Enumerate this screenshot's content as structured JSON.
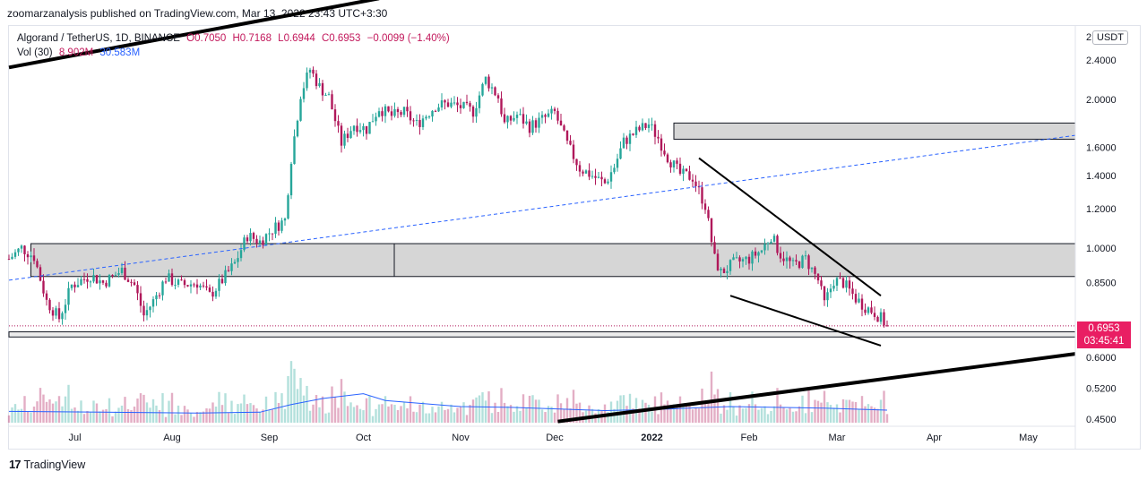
{
  "publisher_line": "zoomarzanalysis published on TradingView.com, Mar 13, 2022 23:43 UTC+3:30",
  "footer_brand": "TradingView",
  "legend": {
    "symbol": "Algorand / TetherUS, 1D, BINANCE",
    "open": "O0.7050",
    "high": "H0.7168",
    "low": "L0.6944",
    "close": "C0.6953",
    "change": "−0.0099 (−1.40%)",
    "volume_label": "Vol (30)",
    "volume_value": "8.902M",
    "volume_ma": "30.583M"
  },
  "currency_badge": "USDT",
  "current_price": {
    "value": "0.6953",
    "countdown": "03:45:41"
  },
  "colors": {
    "up": "#26a69a",
    "down": "#b0185a",
    "line": "#2962ff",
    "zone": "#d6d6d6"
  },
  "chart_data": {
    "type": "candlestick",
    "y_scale": "log",
    "y_ticks": [
      {
        "value": 2.4,
        "label": "2.4000"
      },
      {
        "value": 2.0,
        "label": "2.0000"
      },
      {
        "value": 1.6,
        "label": "1.6000"
      },
      {
        "value": 1.4,
        "label": "1.4000"
      },
      {
        "value": 1.2,
        "label": "1.2000"
      },
      {
        "value": 1.0,
        "label": "1.0000"
      },
      {
        "value": 0.85,
        "label": "0.8500"
      },
      {
        "value": 0.6,
        "label": "0.6000"
      },
      {
        "value": 0.52,
        "label": "0.5200"
      },
      {
        "value": 0.45,
        "label": "0.4500"
      }
    ],
    "y_top_partial": "2",
    "x_ticks": [
      {
        "label": "Jul",
        "day": 21
      },
      {
        "label": "Aug",
        "day": 52
      },
      {
        "label": "Sep",
        "day": 83
      },
      {
        "label": "Oct",
        "day": 113
      },
      {
        "label": "Nov",
        "day": 144
      },
      {
        "label": "Dec",
        "day": 174
      },
      {
        "label": "2022",
        "day": 205
      },
      {
        "label": "Feb",
        "day": 236
      },
      {
        "label": "Mar",
        "day": 264
      },
      {
        "label": "Apr",
        "day": 295
      },
      {
        "label": "May",
        "day": 325
      }
    ],
    "close_path": [
      [
        0,
        0.95
      ],
      [
        4,
        1.0
      ],
      [
        8,
        0.96
      ],
      [
        12,
        0.78
      ],
      [
        16,
        0.72
      ],
      [
        20,
        0.84
      ],
      [
        26,
        0.88
      ],
      [
        30,
        0.85
      ],
      [
        36,
        0.9
      ],
      [
        40,
        0.84
      ],
      [
        43,
        0.73
      ],
      [
        46,
        0.78
      ],
      [
        50,
        0.87
      ],
      [
        55,
        0.84
      ],
      [
        60,
        0.85
      ],
      [
        64,
        0.8
      ],
      [
        68,
        0.86
      ],
      [
        72,
        0.93
      ],
      [
        76,
        1.06
      ],
      [
        80,
        1.03
      ],
      [
        84,
        1.09
      ],
      [
        88,
        1.14
      ],
      [
        90,
        1.52
      ],
      [
        93,
        2.05
      ],
      [
        96,
        2.3
      ],
      [
        99,
        2.12
      ],
      [
        102,
        2.02
      ],
      [
        106,
        1.63
      ],
      [
        110,
        1.78
      ],
      [
        114,
        1.74
      ],
      [
        118,
        1.92
      ],
      [
        122,
        1.85
      ],
      [
        126,
        1.88
      ],
      [
        130,
        1.78
      ],
      [
        136,
        1.94
      ],
      [
        140,
        1.96
      ],
      [
        144,
        1.93
      ],
      [
        148,
        1.89
      ],
      [
        152,
        2.2
      ],
      [
        156,
        2.02
      ],
      [
        158,
        1.78
      ],
      [
        162,
        1.86
      ],
      [
        166,
        1.76
      ],
      [
        170,
        1.82
      ],
      [
        174,
        1.88
      ],
      [
        178,
        1.62
      ],
      [
        182,
        1.45
      ],
      [
        186,
        1.4
      ],
      [
        190,
        1.35
      ],
      [
        193,
        1.46
      ],
      [
        196,
        1.64
      ],
      [
        200,
        1.72
      ],
      [
        204,
        1.78
      ],
      [
        207,
        1.67
      ],
      [
        210,
        1.53
      ],
      [
        214,
        1.41
      ],
      [
        218,
        1.39
      ],
      [
        222,
        1.22
      ],
      [
        225,
        0.95
      ],
      [
        227,
        0.89
      ],
      [
        231,
        0.93
      ],
      [
        236,
        0.95
      ],
      [
        240,
        0.99
      ],
      [
        243,
        1.06
      ],
      [
        246,
        0.97
      ],
      [
        250,
        0.92
      ],
      [
        254,
        0.95
      ],
      [
        258,
        0.86
      ],
      [
        260,
        0.77
      ],
      [
        263,
        0.86
      ],
      [
        266,
        0.85
      ],
      [
        270,
        0.79
      ],
      [
        273,
        0.76
      ],
      [
        276,
        0.74
      ],
      [
        278,
        0.72
      ],
      [
        280,
        0.6953
      ]
    ],
    "volume_ma_path_millions": [
      [
        0,
        28
      ],
      [
        30,
        26
      ],
      [
        60,
        24
      ],
      [
        80,
        26
      ],
      [
        90,
        45
      ],
      [
        100,
        60
      ],
      [
        113,
        72
      ],
      [
        120,
        55
      ],
      [
        144,
        40
      ],
      [
        160,
        38
      ],
      [
        190,
        30
      ],
      [
        210,
        34
      ],
      [
        230,
        40
      ],
      [
        260,
        36
      ],
      [
        280,
        31
      ]
    ],
    "zones": [
      {
        "day_start": 7,
        "day_end": 340,
        "top": 1.02,
        "bottom": 0.875
      },
      {
        "day_start": 212,
        "day_end": 340,
        "top": 1.79,
        "bottom": 1.66
      },
      {
        "day_start": 0,
        "day_end": 340,
        "top": 0.676,
        "bottom": 0.66
      }
    ],
    "trendlines": [
      {
        "style": "solid-thick",
        "from": [
          0,
          2.32
        ],
        "to": [
          118,
          3.2
        ]
      },
      {
        "style": "solid-thick",
        "from": [
          175,
          0.445
        ],
        "to": [
          340,
          0.61
        ]
      },
      {
        "style": "dashed",
        "from": [
          0,
          0.86
        ],
        "to": [
          340,
          1.69
        ]
      },
      {
        "style": "solid",
        "from": [
          220,
          1.52
        ],
        "to": [
          278,
          0.8
        ]
      },
      {
        "style": "solid",
        "from": [
          230,
          0.8
        ],
        "to": [
          278,
          0.634
        ]
      }
    ]
  }
}
